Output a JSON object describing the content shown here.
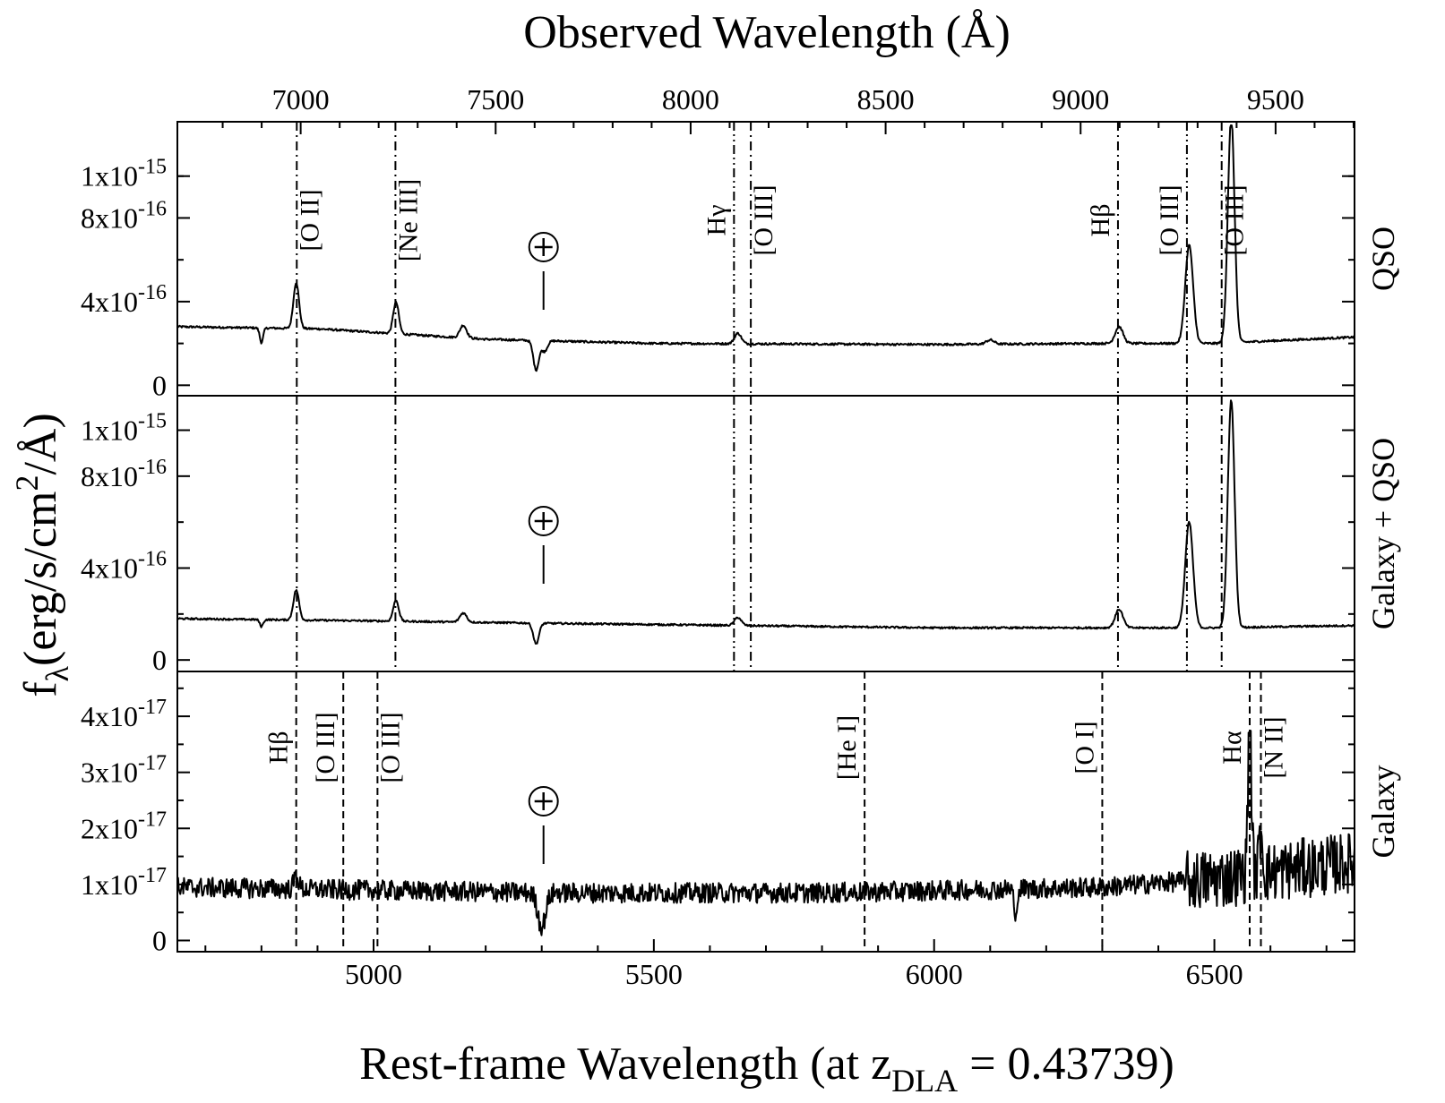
{
  "chart_data": {
    "type": "line",
    "top_axis": {
      "title": "Observed Wavelength (Å)",
      "ticks": [
        7000,
        7500,
        8000,
        8500,
        9000,
        9500
      ],
      "tick_labels": [
        "7000",
        "7500",
        "8000",
        "8500",
        "9000",
        "9500"
      ]
    },
    "bottom_axis": {
      "title_main": "Rest-frame Wavelength (at z",
      "title_sub": "DLA",
      "title_tail": " = 0.43739)",
      "range": [
        4650,
        6750
      ],
      "ticks": [
        5000,
        5500,
        6000,
        6500
      ],
      "tick_labels": [
        "5000",
        "5500",
        "6000",
        "6500"
      ]
    },
    "y_axis": {
      "title_base": "f",
      "title_sub": "λ",
      "title_unit": "(erg/s/cm",
      "title_sup": "2",
      "title_tail": "/Å)"
    },
    "redshift": 0.43739,
    "telluric_symbol": "⊕",
    "panels": [
      {
        "name": "QSO",
        "ylim": [
          -5e-17,
          1.26e-15
        ],
        "ticks": [
          {
            "value": 0,
            "mant": "0",
            "exp": ""
          },
          {
            "value": 4e-16,
            "mant": "4x10",
            "exp": "-16"
          },
          {
            "value": 8e-16,
            "mant": "8x10",
            "exp": "-16"
          },
          {
            "value": 1e-15,
            "mant": "1x10",
            "exp": "-15"
          }
        ],
        "continuum": [
          [
            4650,
            2.8e-16
          ],
          [
            4900,
            2.7e-16
          ],
          [
            5200,
            2.2e-16
          ],
          [
            5500,
            2e-16
          ],
          [
            6000,
            1.95e-16
          ],
          [
            6300,
            2e-16
          ],
          [
            6500,
            2e-16
          ],
          [
            6750,
            2.3e-16
          ]
        ],
        "peaks": [
          [
            4862,
            2.2e-16,
            5
          ],
          [
            5040,
            1.5e-16,
            5
          ],
          [
            5160,
            6e-17,
            6
          ],
          [
            5650,
            5e-17,
            6
          ],
          [
            6100,
            2e-17,
            7
          ],
          [
            6330,
            8e-17,
            7
          ],
          [
            6455,
            4.7e-16,
            7
          ],
          [
            6530,
            1.08e-15,
            6
          ]
        ],
        "dips": [
          [
            4800,
            7e-17,
            3
          ],
          [
            5290,
            1.4e-16,
            5
          ],
          [
            5305,
            5e-17,
            5
          ]
        ],
        "noise": 5e-18,
        "lines": [
          {
            "rest": 4863,
            "label": "[O II]",
            "side": "right",
            "style": "dashdot"
          },
          {
            "rest": 5039,
            "label": "[Ne III]",
            "side": "right",
            "style": "dashdot"
          },
          {
            "rest": 5643,
            "label": "Hγ",
            "side": "left",
            "style": "dashdotdot"
          },
          {
            "rest": 5673,
            "label": "[O III]",
            "side": "right",
            "style": "dashdot"
          },
          {
            "rest": 6328,
            "label": "Hβ",
            "side": "left",
            "style": "dashdot"
          },
          {
            "rest": 6451,
            "label": "[O III]",
            "side": "left",
            "style": "dashdotdot"
          },
          {
            "rest": 6513,
            "label": "[O III]",
            "side": "right",
            "style": "dashdot"
          }
        ],
        "telluric": 5300
      },
      {
        "name": "Galaxy + QSO",
        "ylim": [
          -5e-17,
          1.15e-15
        ],
        "ticks": [
          {
            "value": 0,
            "mant": "0",
            "exp": ""
          },
          {
            "value": 4e-16,
            "mant": "4x10",
            "exp": "-16"
          },
          {
            "value": 8e-16,
            "mant": "8x10",
            "exp": "-16"
          },
          {
            "value": 1e-15,
            "mant": "1x10",
            "exp": "-15"
          }
        ],
        "continuum": [
          [
            4650,
            1.8e-16
          ],
          [
            5000,
            1.7e-16
          ],
          [
            5300,
            1.6e-16
          ],
          [
            6000,
            1.4e-16
          ],
          [
            6500,
            1.4e-16
          ],
          [
            6750,
            1.5e-16
          ]
        ],
        "peaks": [
          [
            4862,
            1.3e-16,
            5
          ],
          [
            5040,
            9e-17,
            5
          ],
          [
            5160,
            4e-17,
            6
          ],
          [
            5650,
            3.5e-17,
            6
          ],
          [
            6330,
            8e-17,
            7
          ],
          [
            6455,
            4.6e-16,
            7
          ],
          [
            6530,
            9.9e-16,
            6
          ]
        ],
        "dips": [
          [
            4800,
            3e-17,
            3
          ],
          [
            5290,
            9e-17,
            5
          ]
        ],
        "noise": 4e-18,
        "lines": [
          {
            "rest": 4863,
            "label": "",
            "side": "right",
            "style": "dashdot"
          },
          {
            "rest": 5039,
            "label": "",
            "side": "right",
            "style": "dashdot"
          },
          {
            "rest": 5643,
            "label": "",
            "side": "left",
            "style": "dashdotdot"
          },
          {
            "rest": 5673,
            "label": "",
            "side": "right",
            "style": "dashdot"
          },
          {
            "rest": 6328,
            "label": "",
            "side": "left",
            "style": "dashdot"
          },
          {
            "rest": 6451,
            "label": "",
            "side": "left",
            "style": "dashdotdot"
          },
          {
            "rest": 6513,
            "label": "",
            "side": "right",
            "style": "dashdot"
          }
        ],
        "telluric": 5300
      },
      {
        "name": "Galaxy",
        "ylim": [
          -2e-18,
          4.8e-17
        ],
        "ticks": [
          {
            "value": 0,
            "mant": "0",
            "exp": ""
          },
          {
            "value": 1e-17,
            "mant": "1x10",
            "exp": "-17"
          },
          {
            "value": 2e-17,
            "mant": "2x10",
            "exp": "-17"
          },
          {
            "value": 3e-17,
            "mant": "3x10",
            "exp": "-17"
          },
          {
            "value": 4e-17,
            "mant": "4x10",
            "exp": "-17"
          }
        ],
        "continuum": [
          [
            4650,
            9.5e-18
          ],
          [
            5300,
            8.5e-18
          ],
          [
            5800,
            8.5e-18
          ],
          [
            6300,
            9.5e-18
          ],
          [
            6500,
            1.1e-17
          ],
          [
            6750,
            1.4e-17
          ]
        ],
        "peaks": [
          [
            4862,
            2.5e-18,
            4
          ],
          [
            6563,
            2.8e-17,
            3
          ],
          [
            6583,
            8e-18,
            3
          ]
        ],
        "dips": [
          [
            5300,
            6e-18,
            7
          ],
          [
            6145,
            7e-18,
            2
          ]
        ],
        "noise": 1.8e-18,
        "lines": [
          {
            "rest": 4862,
            "label": "Hβ",
            "side": "left",
            "style": "dashed"
          },
          {
            "rest": 4946,
            "label": "[O III]",
            "side": "left",
            "style": "dashed"
          },
          {
            "rest": 5007,
            "label": "[O III]",
            "side": "right",
            "style": "dashed"
          },
          {
            "rest": 5876,
            "label": "[He I]",
            "side": "left",
            "style": "dashed"
          },
          {
            "rest": 6300,
            "label": "[O I]",
            "side": "left",
            "style": "dashed"
          },
          {
            "rest": 6563,
            "label": "Hα",
            "side": "left",
            "style": "dashed"
          },
          {
            "rest": 6583,
            "label": "[N II]",
            "side": "right",
            "style": "dashed"
          }
        ],
        "telluric": 5300
      }
    ]
  }
}
